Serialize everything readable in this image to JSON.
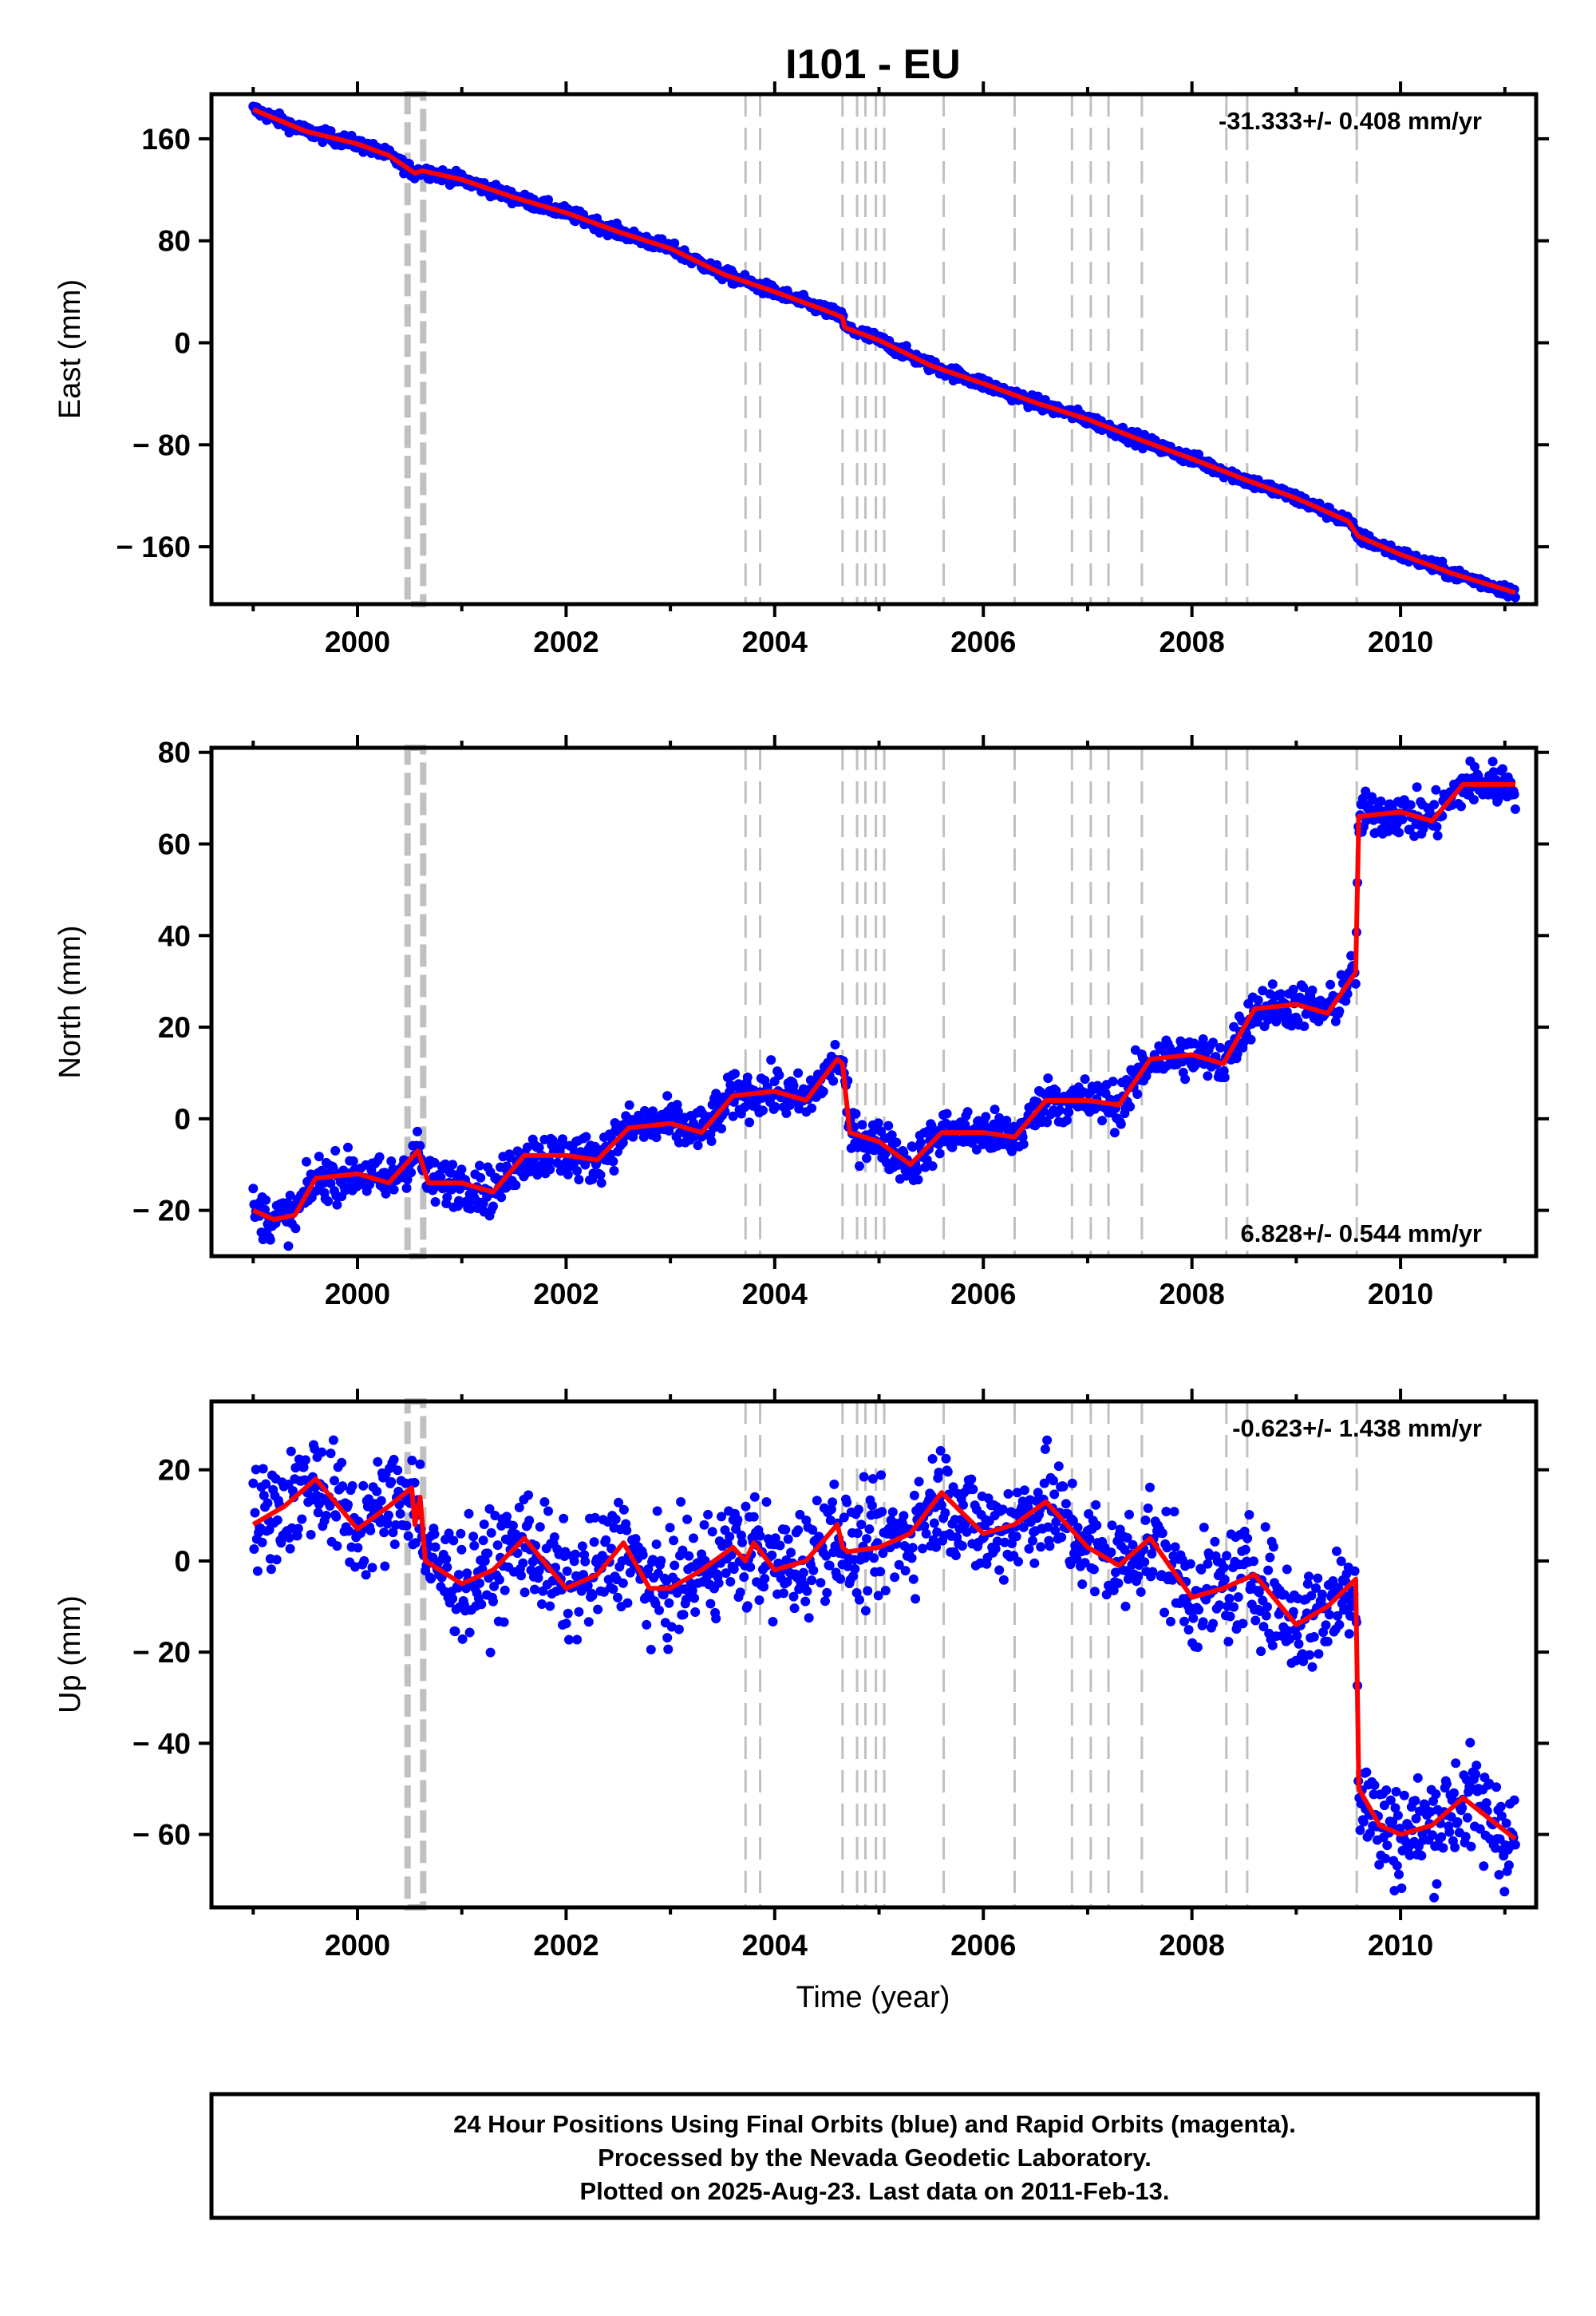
{
  "chart_data": {
    "title": "I101 - EU",
    "xlabel": "Time (year)",
    "x_ticks": [
      "2000",
      "2002",
      "2004",
      "2006",
      "2008",
      "2010"
    ],
    "xlim": [
      1998.6,
      2011.3
    ],
    "antenna_change_band": [
      2000.48,
      2000.63
    ],
    "event_lines": [
      2003.72,
      2003.86,
      2004.65,
      2004.79,
      2004.87,
      2004.97,
      2005.05,
      2005.62,
      2006.3,
      2006.85,
      2007.03,
      2007.2,
      2007.52,
      2008.33,
      2008.53,
      2009.58
    ],
    "colors": {
      "final_orbits": "#0000ff",
      "model_fit": "#ff0000",
      "events": "#c0c0c0",
      "frame": "#000000"
    },
    "panels": [
      {
        "type": "scatter",
        "ylabel": "East (mm)",
        "ylim": [
          -205,
          195
        ],
        "y_ticks": [
          "160",
          "80",
          "0",
          "− 80",
          "− 160"
        ],
        "y_tick_values": [
          160,
          80,
          0,
          -80,
          -160
        ],
        "rate_label": "-31.333+/- 0.408 mm/yr",
        "rate_position": "top-right",
        "scatter_noise_mm": 2.5,
        "trend": {
          "x": [
            1999.0,
            1999.5,
            2000.0,
            2000.3,
            2000.55,
            2000.62,
            2001.0,
            2001.5,
            2002.0,
            2002.5,
            2003.0,
            2003.5,
            2004.0,
            2004.5,
            2004.65,
            2004.67,
            2005.0,
            2005.5,
            2006.0,
            2006.5,
            2007.0,
            2007.5,
            2008.0,
            2008.5,
            2009.0,
            2009.5,
            2009.58,
            2009.6,
            2010.0,
            2010.5,
            2011.1
          ],
          "y": [
            183,
            166,
            156,
            147,
            133,
            135,
            128,
            114,
            102,
            87,
            74,
            54,
            40,
            25,
            20,
            12,
            2,
            -18,
            -32,
            -47,
            -60,
            -76,
            -91,
            -107,
            -122,
            -140,
            -150,
            -152,
            -166,
            -181,
            -196
          ]
        }
      },
      {
        "type": "scatter",
        "ylabel": "North (mm)",
        "ylim": [
          -30,
          81
        ],
        "y_ticks": [
          "80",
          "60",
          "40",
          "20",
          "0",
          "− 20"
        ],
        "y_tick_values": [
          80,
          60,
          40,
          20,
          0,
          -20
        ],
        "rate_label": "6.828+/- 0.544 mm/yr",
        "rate_position": "bottom-right",
        "scatter_noise_mm": 2.5,
        "trend": {
          "x": [
            1999.0,
            1999.2,
            1999.4,
            1999.6,
            2000.0,
            2000.3,
            2000.5,
            2000.58,
            2000.68,
            2001.0,
            2001.3,
            2001.6,
            2002.0,
            2002.3,
            2002.6,
            2003.0,
            2003.3,
            2003.6,
            2004.0,
            2004.3,
            2004.6,
            2004.65,
            2004.72,
            2005.0,
            2005.3,
            2005.6,
            2006.0,
            2006.3,
            2006.6,
            2007.0,
            2007.3,
            2007.6,
            2008.0,
            2008.3,
            2008.6,
            2009.0,
            2009.3,
            2009.57,
            2009.6,
            2010.0,
            2010.3,
            2010.6,
            2011.1
          ],
          "y": [
            -20,
            -22,
            -21,
            -13,
            -12,
            -14,
            -9,
            -7,
            -14,
            -14,
            -16,
            -8,
            -8,
            -9,
            -2,
            -1,
            -3,
            5,
            6,
            4,
            13,
            12,
            -3,
            -5,
            -10,
            -3,
            -3,
            -4,
            4,
            4,
            3,
            13,
            14,
            12,
            24,
            25,
            23,
            32,
            66,
            67,
            65,
            73,
            73
          ]
        }
      },
      {
        "type": "scatter",
        "ylabel": "Up (mm)",
        "ylim": [
          -76,
          35
        ],
        "y_ticks": [
          "20",
          "0",
          "− 20",
          "− 40",
          "− 60"
        ],
        "y_tick_values": [
          20,
          0,
          -20,
          -40,
          -60
        ],
        "rate_label": "-0.623+/- 1.438 mm/yr",
        "rate_position": "top-right",
        "scatter_noise_mm": 6,
        "trend": {
          "x": [
            1999.0,
            1999.3,
            1999.6,
            2000.0,
            2000.3,
            2000.52,
            2000.55,
            2000.6,
            2000.65,
            2001.0,
            2001.3,
            2001.6,
            2002.0,
            2002.3,
            2002.55,
            2002.8,
            2003.0,
            2003.3,
            2003.6,
            2003.72,
            2003.8,
            2004.0,
            2004.3,
            2004.6,
            2004.65,
            2004.7,
            2005.0,
            2005.3,
            2005.6,
            2006.0,
            2006.3,
            2006.6,
            2007.0,
            2007.3,
            2007.6,
            2008.0,
            2008.3,
            2008.6,
            2009.0,
            2009.3,
            2009.57,
            2009.6,
            2009.8,
            2010.0,
            2010.3,
            2010.6,
            2011.1
          ],
          "y": [
            8,
            12,
            18,
            7,
            12,
            16,
            8,
            14,
            0,
            -5,
            -2,
            5,
            -6,
            -3,
            4,
            -6,
            -6,
            -2,
            3,
            0,
            4,
            -2,
            0,
            8,
            3,
            2,
            3,
            6,
            15,
            6,
            8,
            13,
            3,
            -1,
            5,
            -8,
            -6,
            -3,
            -14,
            -10,
            -4,
            -50,
            -58,
            -60,
            -58,
            -52,
            -61
          ]
        }
      }
    ]
  },
  "caption": {
    "line1": "24 Hour Positions Using Final Orbits (blue) and Rapid Orbits (magenta).",
    "line2": "Processed by the Nevada Geodetic Laboratory.",
    "line3": "Plotted on 2025-Aug-23. Last data on 2011-Feb-13."
  }
}
